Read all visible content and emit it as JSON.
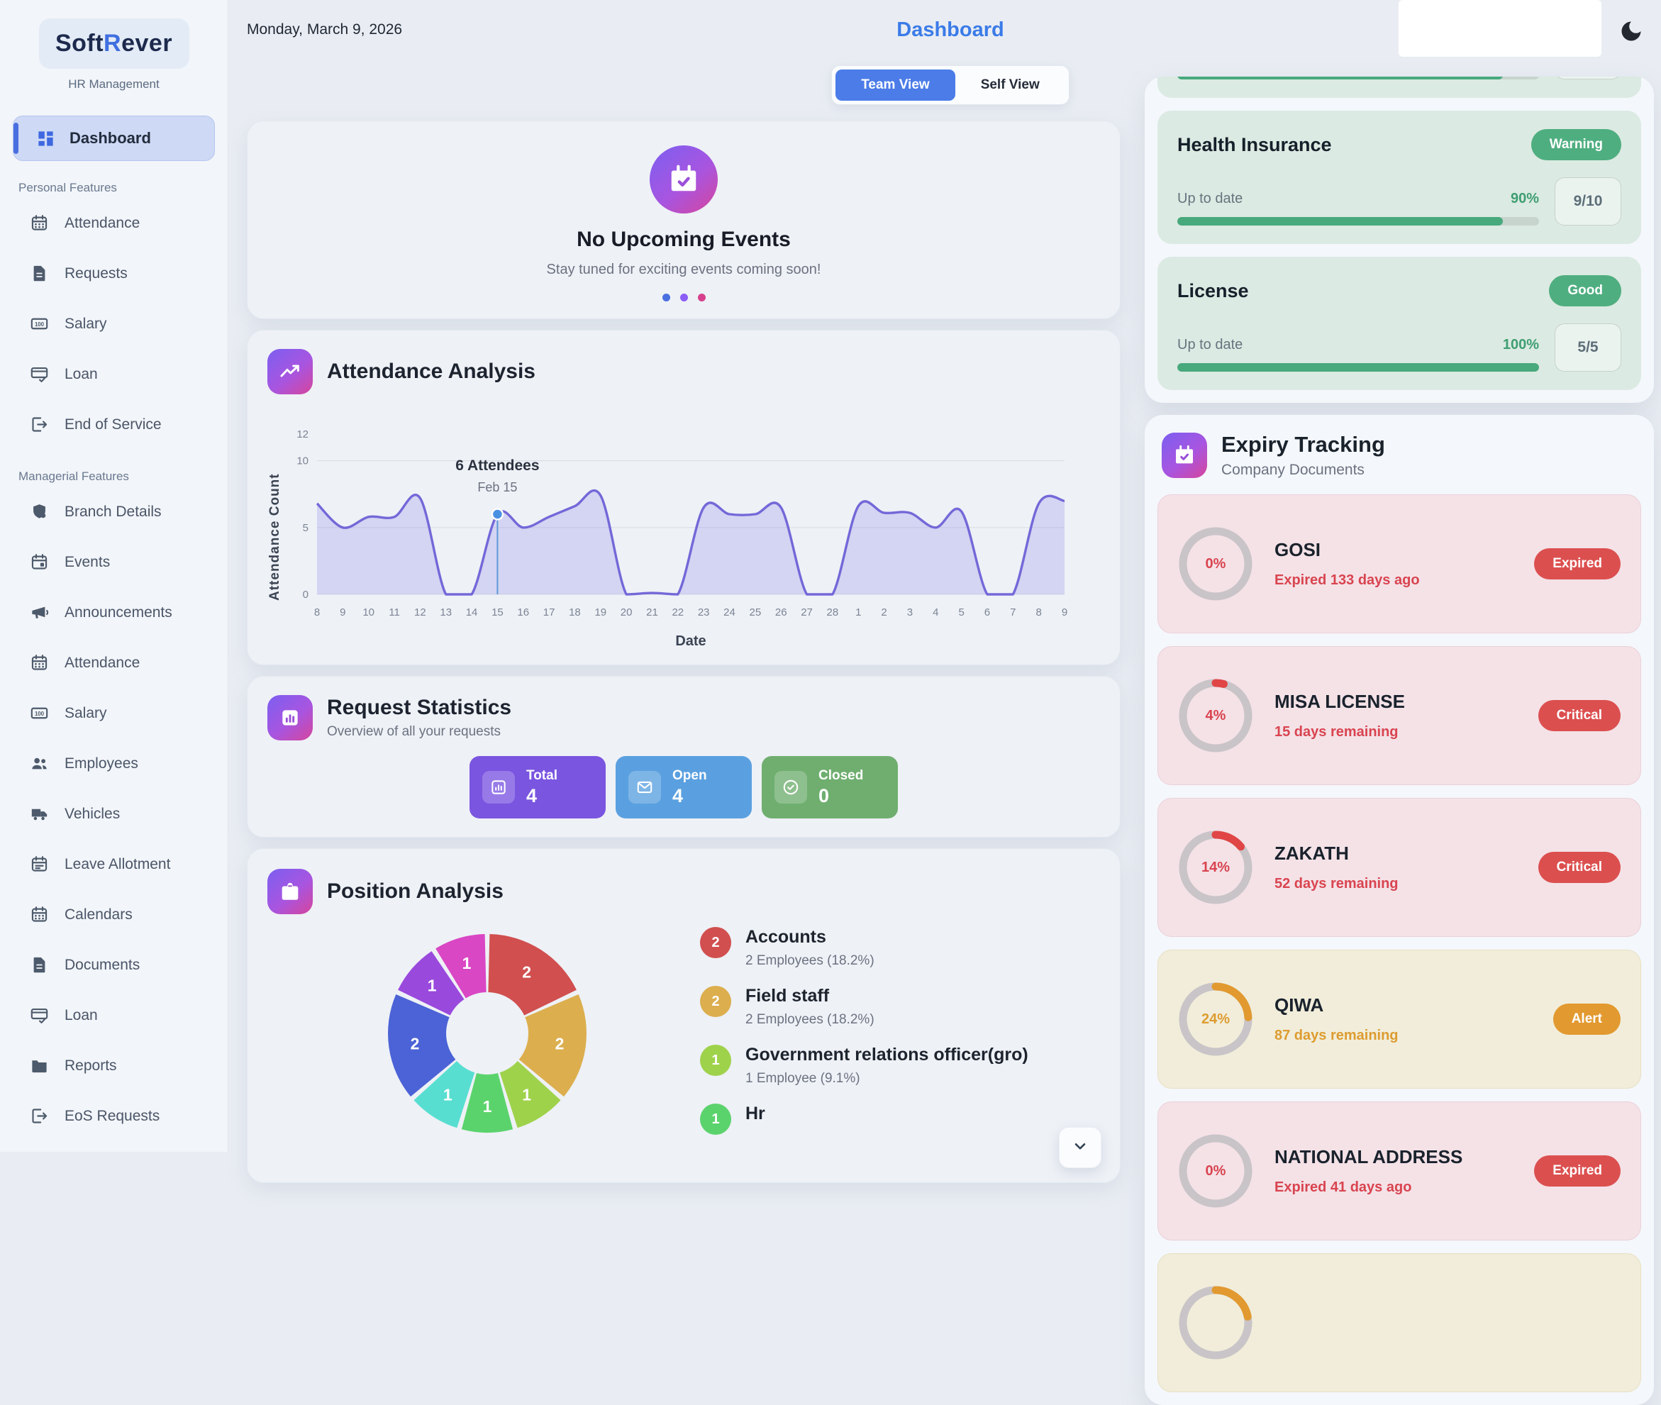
{
  "brand": {
    "part1": "Soft",
    "r": "R",
    "part2": "ever",
    "subtitle": "HR Management"
  },
  "topbar": {
    "date": "Monday, March 9, 2026",
    "page_title": "Dashboard",
    "team_view": "Team View",
    "self_view": "Self View"
  },
  "sidebar": {
    "dashboard_label": "Dashboard",
    "sections": [
      {
        "label": "Personal Features",
        "items": [
          {
            "label": "Attendance",
            "icon": "calendar"
          },
          {
            "label": "Requests",
            "icon": "file"
          },
          {
            "label": "Salary",
            "icon": "banknote"
          },
          {
            "label": "Loan",
            "icon": "card"
          },
          {
            "label": "End of Service",
            "icon": "exit"
          }
        ]
      },
      {
        "label": "Managerial Features",
        "items": [
          {
            "label": "Branch Details",
            "icon": "branch"
          },
          {
            "label": "Events",
            "icon": "calendar-event"
          },
          {
            "label": "Announcements",
            "icon": "megaphone"
          },
          {
            "label": "Attendance",
            "icon": "calendar"
          },
          {
            "label": "Salary",
            "icon": "banknote"
          },
          {
            "label": "Employees",
            "icon": "people"
          },
          {
            "label": "Vehicles",
            "icon": "truck"
          },
          {
            "label": "Leave Allotment",
            "icon": "calendar-leave"
          },
          {
            "label": "Calendars",
            "icon": "calendar"
          },
          {
            "label": "Documents",
            "icon": "file"
          },
          {
            "label": "Loan",
            "icon": "card"
          },
          {
            "label": "Reports",
            "icon": "folder"
          },
          {
            "label": "EoS Requests",
            "icon": "exit"
          }
        ]
      }
    ]
  },
  "events_card": {
    "title": "No Upcoming Events",
    "subtitle": "Stay tuned for exciting events coming soon!",
    "dots": [
      "#4a6fe0",
      "#8b5cf6",
      "#d6408c"
    ]
  },
  "attendance": {
    "title": "Attendance Analysis"
  },
  "requests": {
    "title": "Request Statistics",
    "subtitle": "Overview of all your requests",
    "stats": [
      {
        "label": "Total",
        "value": "4",
        "color": "#7a55e0",
        "icon": "bars"
      },
      {
        "label": "Open",
        "value": "4",
        "color": "#5aa0e0",
        "icon": "mail"
      },
      {
        "label": "Closed",
        "value": "0",
        "color": "#6fae6f",
        "icon": "check"
      }
    ]
  },
  "positions": {
    "title": "Position Analysis",
    "legend": [
      {
        "count": "2",
        "color": "#d14f4f",
        "name": "Accounts",
        "detail": "2 Employees (18.2%)"
      },
      {
        "count": "2",
        "color": "#dcae4e",
        "name": "Field staff",
        "detail": "2 Employees (18.2%)"
      },
      {
        "count": "1",
        "color": "#9fd24b",
        "name": "Government relations officer(gro)",
        "detail": "1 Employee (9.1%)"
      },
      {
        "count": "1",
        "color": "#5bd36d",
        "name": "Hr",
        "detail": ""
      }
    ]
  },
  "compliance": {
    "partial": {
      "percent": 90
    },
    "cards": [
      {
        "name": "Health Insurance",
        "badge": "Warning",
        "status": "Up to date",
        "percent": 90,
        "pct_label": "90%",
        "count": "9/10"
      },
      {
        "name": "License",
        "badge": "Good",
        "status": "Up to date",
        "percent": 100,
        "pct_label": "100%",
        "count": "5/5"
      }
    ]
  },
  "expiry": {
    "title": "Expiry Tracking",
    "subtitle": "Company Documents",
    "items": [
      {
        "name": "GOSI",
        "percent": 0,
        "pct_label": "0%",
        "note": "Expired 133 days ago",
        "badge": "Expired",
        "tone": "red"
      },
      {
        "name": "MISA LICENSE",
        "percent": 4,
        "pct_label": "4%",
        "note": "15 days remaining",
        "badge": "Critical",
        "tone": "red"
      },
      {
        "name": "ZAKATH",
        "percent": 14,
        "pct_label": "14%",
        "note": "52 days remaining",
        "badge": "Critical",
        "tone": "red"
      },
      {
        "name": "QIWA",
        "percent": 24,
        "pct_label": "24%",
        "note": "87 days remaining",
        "badge": "Alert",
        "tone": "amber"
      },
      {
        "name": "NATIONAL ADDRESS",
        "percent": 0,
        "pct_label": "0%",
        "note": "Expired 41 days ago",
        "badge": "Expired",
        "tone": "red"
      }
    ],
    "partial_item": {
      "tone": "amber",
      "arc_percent": 22
    }
  },
  "chart_data": [
    {
      "type": "area",
      "title": "Attendance Analysis",
      "xlabel": "Date",
      "ylabel": "Attendance Count",
      "x": [
        "8",
        "9",
        "10",
        "11",
        "12",
        "13",
        "14",
        "15",
        "16",
        "17",
        "18",
        "19",
        "20",
        "21",
        "22",
        "23",
        "24",
        "25",
        "26",
        "27",
        "28",
        "1",
        "2",
        "3",
        "4",
        "5",
        "6",
        "7",
        "8",
        "9"
      ],
      "values": [
        6.8,
        5,
        5.8,
        5.8,
        7.2,
        0,
        0,
        6,
        5,
        5.8,
        6.6,
        7.4,
        0,
        0.1,
        0,
        6.5,
        6,
        6,
        6.5,
        0,
        0,
        6.6,
        6.1,
        6.1,
        5,
        6.2,
        0,
        0,
        6.8,
        7
      ],
      "yticks": [
        0,
        5,
        10,
        12
      ],
      "ylim": [
        0,
        12
      ],
      "grid": true,
      "line_color": "#7368d8",
      "fill_color": "rgba(124,110,230,0.22)",
      "annotation": {
        "index": 7,
        "line1": "6 Attendees",
        "line2": "Feb 15",
        "value": 6
      }
    },
    {
      "type": "donut",
      "title": "Position Analysis",
      "total": 11,
      "segments": [
        {
          "label": "Accounts",
          "value": 2,
          "color": "#d14f4f"
        },
        {
          "label": "Field staff",
          "value": 2,
          "color": "#dcae4e"
        },
        {
          "label": "Government relations officer(gro)",
          "value": 1,
          "color": "#9fd24b"
        },
        {
          "label": "Hr",
          "value": 1,
          "color": "#5bd36d"
        },
        {
          "label": "",
          "value": 1,
          "color": "#58ded1"
        },
        {
          "label": "",
          "value": 2,
          "color": "#4b63d6"
        },
        {
          "label": "",
          "value": 1,
          "color": "#9a49dd"
        },
        {
          "label": "",
          "value": 1,
          "color": "#d947c4"
        }
      ]
    }
  ]
}
